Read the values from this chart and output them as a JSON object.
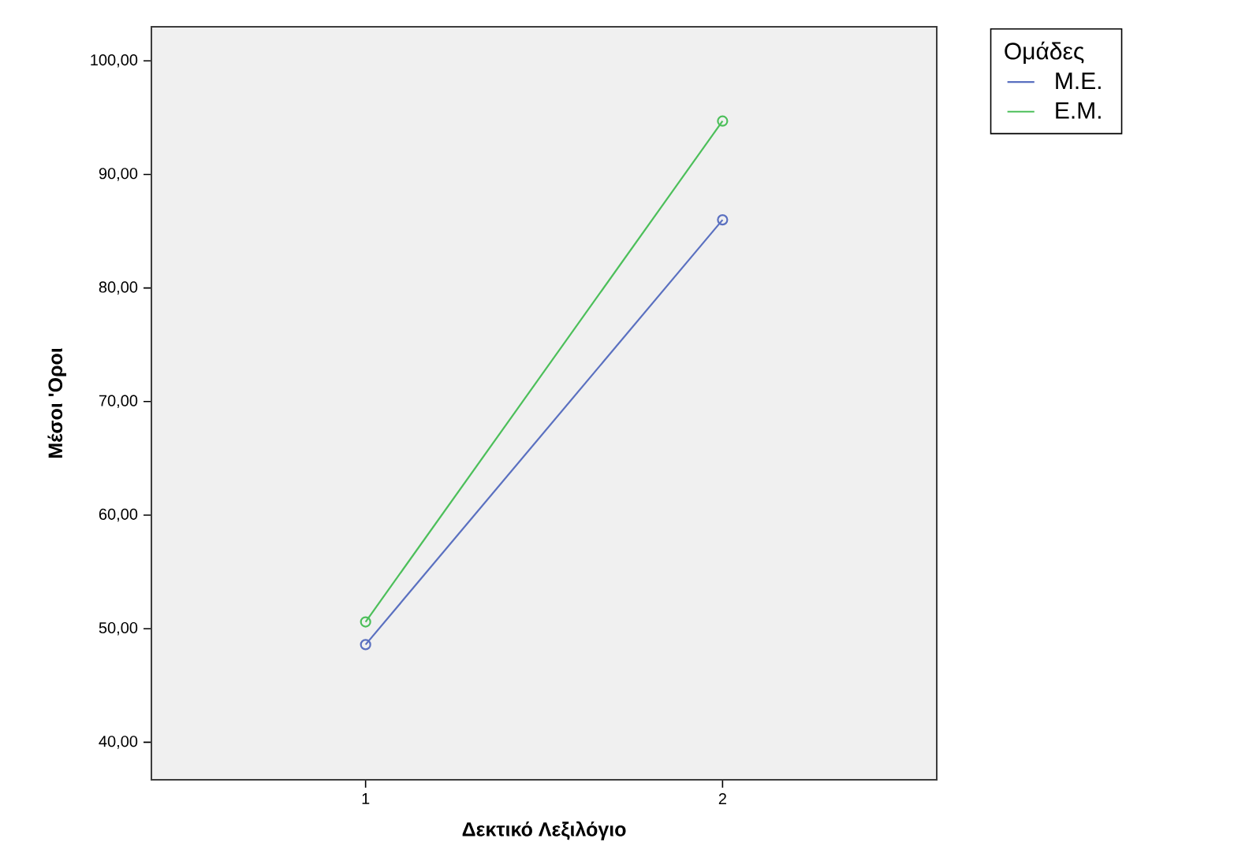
{
  "chart_data": {
    "type": "line",
    "xlabel": "Δεκτικό Λεξιλόγιο",
    "ylabel": "Μέσοι 'Οροι",
    "legend_title": "Ομάδες",
    "x": [
      1,
      2
    ],
    "xlim": [
      0.4,
      2.6
    ],
    "xticks": [
      1,
      2
    ],
    "ylim": [
      36.7,
      103
    ],
    "yticks": [
      {
        "value": 40,
        "label": "40,00"
      },
      {
        "value": 50,
        "label": "50,00"
      },
      {
        "value": 60,
        "label": "60,00"
      },
      {
        "value": 70,
        "label": "70,00"
      },
      {
        "value": 80,
        "label": "80,00"
      },
      {
        "value": 90,
        "label": "90,00"
      },
      {
        "value": 100,
        "label": "100,00"
      }
    ],
    "series": [
      {
        "name": "Μ.Ε.",
        "color": "#5a70c0",
        "values": [
          48.6,
          86.0
        ]
      },
      {
        "name": "Ε.Μ.",
        "color": "#4cbf5a",
        "values": [
          50.6,
          94.7
        ]
      }
    ],
    "marker": "circle",
    "line_style": "solid",
    "grid": false,
    "legend": "top right"
  }
}
